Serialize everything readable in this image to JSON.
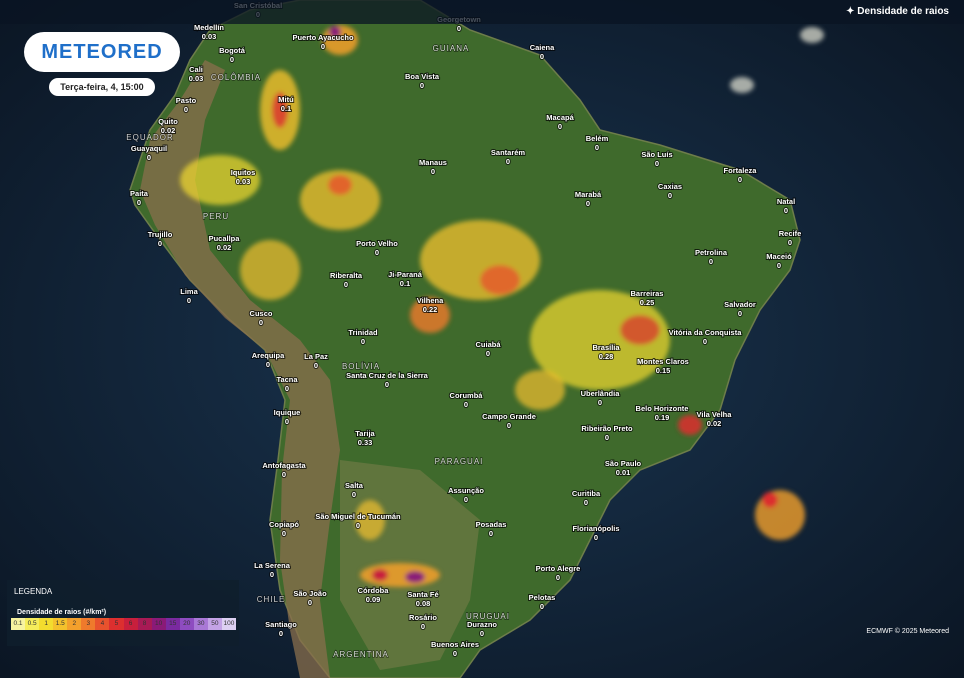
{
  "header": {
    "title": "Densidade de raios"
  },
  "logo": {
    "text": "METEORED"
  },
  "timestamp": "Terça-feira, 4, 15:00",
  "cities": [
    {
      "name": "San Cristóbal",
      "value": "0"
    },
    {
      "name": "Medellín",
      "value": "0.03"
    },
    {
      "name": "Bogotá",
      "value": "0"
    },
    {
      "name": "Puerto Ayacucho",
      "value": "0"
    },
    {
      "name": "Georgetown",
      "value": "0"
    },
    {
      "name": "Caiena",
      "value": "0"
    },
    {
      "name": "Cali",
      "value": "0.03"
    },
    {
      "name": "Boa Vista",
      "value": "0"
    },
    {
      "name": "Pasto",
      "value": "0"
    },
    {
      "name": "Mitú",
      "value": "0.1"
    },
    {
      "name": "Quito",
      "value": "0.02"
    },
    {
      "name": "Macapá",
      "value": "0"
    },
    {
      "name": "Belém",
      "value": "0"
    },
    {
      "name": "Guayaquil",
      "value": "0"
    },
    {
      "name": "Santarém",
      "value": "0"
    },
    {
      "name": "Manaus",
      "value": "0"
    },
    {
      "name": "São Luís",
      "value": "0"
    },
    {
      "name": "Fortaleza",
      "value": "0"
    },
    {
      "name": "Iquitos",
      "value": "0.03"
    },
    {
      "name": "Caxias",
      "value": "0"
    },
    {
      "name": "Paita",
      "value": "0"
    },
    {
      "name": "Natal",
      "value": "0"
    },
    {
      "name": "Marabá",
      "value": "0"
    },
    {
      "name": "Trujillo",
      "value": "0"
    },
    {
      "name": "Recife",
      "value": "0"
    },
    {
      "name": "Porto Velho",
      "value": "0"
    },
    {
      "name": "Pucallpa",
      "value": "0.02"
    },
    {
      "name": "Petrolina",
      "value": "0"
    },
    {
      "name": "Maceió",
      "value": "0"
    },
    {
      "name": "Ji-Paraná",
      "value": "0.1"
    },
    {
      "name": "Riberalta",
      "value": "0"
    },
    {
      "name": "Lima",
      "value": "0"
    },
    {
      "name": "Barreiras",
      "value": "0.25"
    },
    {
      "name": "Salvador",
      "value": "0"
    },
    {
      "name": "Vilhena",
      "value": "0.22"
    },
    {
      "name": "Cusco",
      "value": "0"
    },
    {
      "name": "Vitória da Conquista",
      "value": "0"
    },
    {
      "name": "Trinidad",
      "value": "0"
    },
    {
      "name": "Cuiabá",
      "value": "0"
    },
    {
      "name": "Brasília",
      "value": "0.28"
    },
    {
      "name": "La Paz",
      "value": "0"
    },
    {
      "name": "Arequipa",
      "value": "0"
    },
    {
      "name": "Montes Claros",
      "value": "0.15"
    },
    {
      "name": "Santa Cruz de la Sierra",
      "value": "0"
    },
    {
      "name": "Tacna",
      "value": "0"
    },
    {
      "name": "Uberlândia",
      "value": "0"
    },
    {
      "name": "Corumbá",
      "value": "0"
    },
    {
      "name": "Iquique",
      "value": "0"
    },
    {
      "name": "Belo Horizonte",
      "value": "0.19"
    },
    {
      "name": "Vila Velha",
      "value": "0.02"
    },
    {
      "name": "Campo Grande",
      "value": "0"
    },
    {
      "name": "Ribeirão Preto",
      "value": "0"
    },
    {
      "name": "Tarija",
      "value": "0.33"
    },
    {
      "name": "Antofagasta",
      "value": "0"
    },
    {
      "name": "São Paulo",
      "value": "0.01"
    },
    {
      "name": "Salta",
      "value": "0"
    },
    {
      "name": "Assunção",
      "value": "0"
    },
    {
      "name": "Curitiba",
      "value": "0"
    },
    {
      "name": "São Miguel de Tucumán",
      "value": "0"
    },
    {
      "name": "Copiapó",
      "value": "0"
    },
    {
      "name": "Posadas",
      "value": "0"
    },
    {
      "name": "Florianópolis",
      "value": "0"
    },
    {
      "name": "La Serena",
      "value": "0"
    },
    {
      "name": "Porto Alegre",
      "value": "0"
    },
    {
      "name": "Córdoba",
      "value": "0.09"
    },
    {
      "name": "Santa Fé",
      "value": "0.08"
    },
    {
      "name": "São João",
      "value": "0"
    },
    {
      "name": "Pelotas",
      "value": "0"
    },
    {
      "name": "Rosário",
      "value": "0"
    },
    {
      "name": "Santiago",
      "value": "0"
    },
    {
      "name": "Durazno",
      "value": "0"
    },
    {
      "name": "Buenos Aires",
      "value": "0"
    }
  ],
  "countries": [
    "COLÔMBIA",
    "GUIANA",
    "EQUADOR",
    "PERU",
    "BOLÍVIA",
    "PARAGUAI",
    "CHILE",
    "URUGUAI",
    "ARGENTINA"
  ],
  "legend": {
    "title": "LEGENDA",
    "subtitle": "Densidade de raios (#/km²)",
    "items": [
      {
        "label": "0.1",
        "color": "#f7f3a0"
      },
      {
        "label": "0.5",
        "color": "#f5ec5a"
      },
      {
        "label": "1",
        "color": "#f3dc2e"
      },
      {
        "label": "1.5",
        "color": "#f4c12c"
      },
      {
        "label": "2",
        "color": "#f3a02c"
      },
      {
        "label": "3",
        "color": "#ef7a2c"
      },
      {
        "label": "4",
        "color": "#e8522d"
      },
      {
        "label": "5",
        "color": "#dc2f2f"
      },
      {
        "label": "6",
        "color": "#c81f3c"
      },
      {
        "label": "8",
        "color": "#a81a55"
      },
      {
        "label": "10",
        "color": "#8a1a78"
      },
      {
        "label": "15",
        "color": "#7a2aa0"
      },
      {
        "label": "20",
        "color": "#8e4cc0"
      },
      {
        "label": "30",
        "color": "#a978d6"
      },
      {
        "label": "50",
        "color": "#c4a3e6"
      },
      {
        "label": "100",
        "color": "#ddd0f2"
      }
    ]
  },
  "credit": "ECMWF © 2025 Meteored"
}
